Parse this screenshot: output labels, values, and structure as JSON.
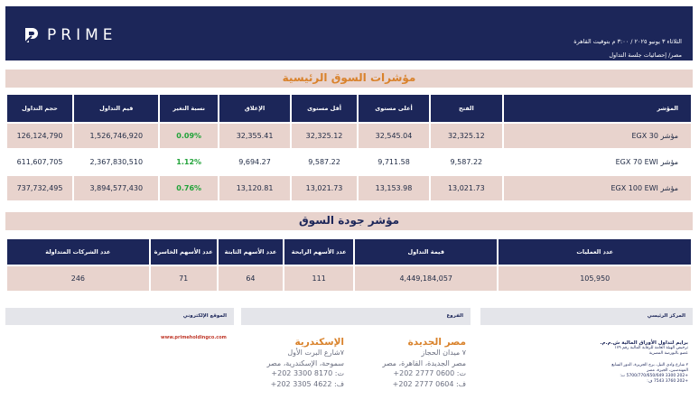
{
  "header": {
    "brand": "PRIME",
    "date_line": "الثلاثاء ٣ يونيو ٢٠٢٥ / ٣:٠٠ م بتوقيت القاهرة",
    "path_line": "مصر/ إحصائيات جلسة التداول"
  },
  "indices": {
    "title": "مؤشرات السوق الرئيسية",
    "headers": {
      "index": "المؤشر",
      "open": "الفتح",
      "high": "أعلى مستوى",
      "low": "أقل مستوى",
      "close": "الإغلاق",
      "change": "نسبة التغير",
      "value": "قيم التداول",
      "volume": "حجم التداول"
    },
    "rows": [
      {
        "index": "مؤشر EGX 30",
        "open": "32,325.12",
        "high": "32,545.04",
        "low": "32,325.12",
        "close": "32,355.41",
        "change": "0.09%",
        "value": "1,526,746,920",
        "volume": "126,124,790"
      },
      {
        "index": "مؤشر EGX 70 EWI",
        "open": "9,587.22",
        "high": "9,711.58",
        "low": "9,587.22",
        "close": "9,694.27",
        "change": "1.12%",
        "value": "2,367,830,510",
        "volume": "611,607,705"
      },
      {
        "index": "مؤشر EGX 100 EWI",
        "open": "13,021.73",
        "high": "13,153.98",
        "low": "13,021.73",
        "close": "13,120.81",
        "change": "0.76%",
        "value": "3,894,577,430",
        "volume": "737,732,495"
      }
    ]
  },
  "quality": {
    "title": "مؤشر جودة السوق",
    "headers": {
      "transactions": "عدد العمليات",
      "trade_value": "قيمة التداول",
      "gainers": "عدد الأسهم الرابحة",
      "unchanged": "عدد الأسهم الثابتة",
      "losers": "عدد الأسهم الخاسرة",
      "traded": "عدد الشركات المتداولة"
    },
    "row": {
      "transactions": "105,950",
      "trade_value": "4,449,184,057",
      "gainers": "111",
      "unchanged": "64",
      "losers": "71",
      "traded": "246"
    }
  },
  "footer": {
    "hq_label": "المركز الرئيسي",
    "branches_label": "الفروع",
    "website_label": "الموقع الإلكتروني",
    "website": "www.primeholdingco.com",
    "branch_cairo": {
      "name": "مصر الجديدة",
      "line1": "٧ ميدان الحجاز",
      "line2": "مصر الجديدة، القاهرة، مصر",
      "line3": "ت: 0600 2777 202+",
      "line4": "ف: 0604 2777 202+"
    },
    "branch_alex": {
      "name": "الإسكندرية",
      "line1": "٧شارع البرت الأول",
      "line2": "سموحة، الإسكندرية، مصر",
      "line3": "ت: 8170 3300 202+",
      "line4": "ف: 4622 3305 202+"
    },
    "hq": {
      "name": "برايم لتداول الأوراق المالية ش.م.م.",
      "line1": "ترخيص الهيئة العامة للرقابة المالية رقم ١٧٩",
      "line2": "عضو بالبورصة المصرية",
      "line3": "٢ شارع وادي النيل، برج الجزيرة، الدور السابع",
      "line4": "المهندسين، الجيزة، مصر",
      "line5": "+202 3300 5700/770/650/649 ت:",
      "line6": "+202 3760 7543 ف:"
    }
  }
}
